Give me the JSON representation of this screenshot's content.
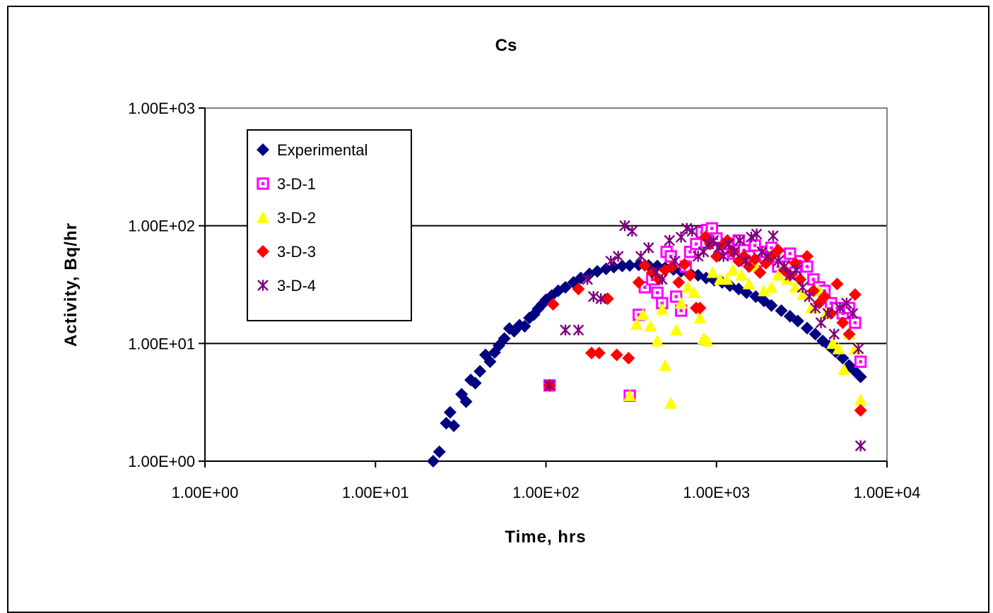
{
  "chart_data": {
    "type": "scatter",
    "title": "Cs",
    "xlabel": "Time, hrs",
    "ylabel": "Activity, Bq/hr",
    "xscale": "log",
    "yscale": "log",
    "xlim": [
      1,
      10000
    ],
    "ylim": [
      1,
      1000
    ],
    "xticks": [
      "1.00E+00",
      "1.00E+01",
      "1.00E+02",
      "1.00E+03",
      "1.00E+04"
    ],
    "yticks": [
      "1.00E+00",
      "1.00E+01",
      "1.00E+02",
      "1.00E+03"
    ],
    "grid": "horizontal major",
    "legend_position": "top-left",
    "series": [
      {
        "name": "Experimental",
        "color": "#000080",
        "marker": "diamond",
        "points": [
          [
            21.8,
            1.0
          ],
          [
            23.7,
            1.2
          ],
          [
            26.0,
            2.1
          ],
          [
            27.4,
            2.6
          ],
          [
            28.8,
            2.0
          ],
          [
            32.0,
            3.7
          ],
          [
            34.0,
            3.2
          ],
          [
            36.2,
            4.9
          ],
          [
            38.5,
            4.6
          ],
          [
            41.0,
            5.8
          ],
          [
            44.2,
            8.0
          ],
          [
            47.0,
            7.0
          ],
          [
            50.0,
            8.4
          ],
          [
            53.0,
            9.6
          ],
          [
            57.0,
            11.0
          ],
          [
            61.0,
            13.4
          ],
          [
            65.0,
            12.7
          ],
          [
            70.0,
            14.3
          ],
          [
            75.0,
            14.0
          ],
          [
            80.0,
            16.5
          ],
          [
            85.0,
            17.6
          ],
          [
            90.0,
            19.7
          ],
          [
            95.0,
            21.5
          ],
          [
            100.0,
            23.5
          ],
          [
            108.0,
            25.5
          ],
          [
            118.0,
            28.0
          ],
          [
            130.0,
            30.0
          ],
          [
            145.0,
            33.0
          ],
          [
            160.0,
            36.0
          ],
          [
            180.0,
            39.0
          ],
          [
            200.0,
            41.0
          ],
          [
            225.0,
            43.0
          ],
          [
            250.0,
            44.5
          ],
          [
            280.0,
            45.5
          ],
          [
            310.0,
            46.0
          ],
          [
            350.0,
            46.5
          ],
          [
            400.0,
            46.0
          ],
          [
            450.0,
            45.5
          ],
          [
            500.0,
            44.0
          ],
          [
            560.0,
            42.5
          ],
          [
            620.0,
            41.0
          ],
          [
            700.0,
            39.5
          ],
          [
            780.0,
            38.0
          ],
          [
            870.0,
            36.0
          ],
          [
            970.0,
            34.5
          ],
          [
            1080.0,
            33.0
          ],
          [
            1200.0,
            31.0
          ],
          [
            1350.0,
            29.0
          ],
          [
            1500.0,
            27.0
          ],
          [
            1700.0,
            25.0
          ],
          [
            1900.0,
            23.0
          ],
          [
            2100.0,
            21.0
          ],
          [
            2400.0,
            19.0
          ],
          [
            2700.0,
            17.0
          ],
          [
            3000.0,
            15.5
          ],
          [
            3400.0,
            13.5
          ],
          [
            3800.0,
            12.0
          ],
          [
            4200.0,
            10.5
          ],
          [
            4600.0,
            9.5
          ],
          [
            5000.0,
            8.5
          ],
          [
            5500.0,
            7.5
          ],
          [
            6000.0,
            6.5
          ],
          [
            6500.0,
            5.8
          ],
          [
            7000.0,
            5.2
          ]
        ]
      },
      {
        "name": "3-D-1",
        "color": "#ff00ff",
        "marker": "square",
        "points": [
          [
            105.0,
            4.4
          ],
          [
            310.0,
            3.6
          ],
          [
            350.0,
            17.5
          ],
          [
            380.0,
            30.0
          ],
          [
            420.0,
            35.0
          ],
          [
            450.0,
            27.0
          ],
          [
            480.0,
            22.0
          ],
          [
            510.0,
            60.0
          ],
          [
            540.0,
            55.0
          ],
          [
            580.0,
            25.0
          ],
          [
            620.0,
            19.0
          ],
          [
            660.0,
            45.0
          ],
          [
            700.0,
            60.0
          ],
          [
            760.0,
            70.0
          ],
          [
            820.0,
            88.0
          ],
          [
            880.0,
            92.0
          ],
          [
            940.0,
            95.0
          ],
          [
            1000.0,
            78.0
          ],
          [
            1080.0,
            65.0
          ],
          [
            1160.0,
            70.0
          ],
          [
            1250.0,
            58.0
          ],
          [
            1350.0,
            75.0
          ],
          [
            1450.0,
            62.0
          ],
          [
            1550.0,
            55.0
          ],
          [
            1680.0,
            68.0
          ],
          [
            1800.0,
            50.0
          ],
          [
            1950.0,
            60.0
          ],
          [
            2100.0,
            65.0
          ],
          [
            2300.0,
            45.0
          ],
          [
            2500.0,
            55.0
          ],
          [
            2700.0,
            58.0
          ],
          [
            2900.0,
            40.0
          ],
          [
            3100.0,
            50.0
          ],
          [
            3400.0,
            45.0
          ],
          [
            3700.0,
            35.0
          ],
          [
            4000.0,
            30.0
          ],
          [
            4300.0,
            28.0
          ],
          [
            4700.0,
            22.0
          ],
          [
            5100.0,
            20.0
          ],
          [
            5500.0,
            18.0
          ],
          [
            6000.0,
            20.0
          ],
          [
            6500.0,
            15.0
          ],
          [
            7000.0,
            7.0
          ]
        ]
      },
      {
        "name": "3-D-2",
        "color": "#ffff00",
        "marker": "triangle",
        "points": [
          [
            310.0,
            3.6
          ],
          [
            340.0,
            14.5
          ],
          [
            370.0,
            17.5
          ],
          [
            410.0,
            14.0
          ],
          [
            450.0,
            10.5
          ],
          [
            480.0,
            19.5
          ],
          [
            500.0,
            6.5
          ],
          [
            540.0,
            3.1
          ],
          [
            580.0,
            13.0
          ],
          [
            620.0,
            22.0
          ],
          [
            680.0,
            30.0
          ],
          [
            740.0,
            27.0
          ],
          [
            800.0,
            16.5
          ],
          [
            840.0,
            11.0
          ],
          [
            880.0,
            10.5
          ],
          [
            950.0,
            40.0
          ],
          [
            1050.0,
            35.0
          ],
          [
            1150.0,
            35.0
          ],
          [
            1250.0,
            42.0
          ],
          [
            1400.0,
            38.0
          ],
          [
            1550.0,
            32.0
          ],
          [
            1700.0,
            45.0
          ],
          [
            1900.0,
            28.0
          ],
          [
            2100.0,
            30.0
          ],
          [
            2300.0,
            38.0
          ],
          [
            2600.0,
            35.0
          ],
          [
            2900.0,
            30.0
          ],
          [
            3200.0,
            26.0
          ],
          [
            3600.0,
            20.0
          ],
          [
            4000.0,
            28.0
          ],
          [
            4400.0,
            18.0
          ],
          [
            4800.0,
            10.0
          ],
          [
            5200.0,
            9.0
          ],
          [
            5600.0,
            6.0
          ],
          [
            6000.0,
            12.0
          ],
          [
            6500.0,
            9.0
          ],
          [
            7000.0,
            3.3
          ]
        ]
      },
      {
        "name": "3-D-3",
        "color": "#ff0000",
        "marker": "diamond",
        "points": [
          [
            105.0,
            4.4
          ],
          [
            110.0,
            21.5
          ],
          [
            155.0,
            29.0
          ],
          [
            185.0,
            8.3
          ],
          [
            205.0,
            8.3
          ],
          [
            230.0,
            24.0
          ],
          [
            260.0,
            8.0
          ],
          [
            305.0,
            7.5
          ],
          [
            350.0,
            33.0
          ],
          [
            380.0,
            46.0
          ],
          [
            420.0,
            40.0
          ],
          [
            460.0,
            35.0
          ],
          [
            500.0,
            42.0
          ],
          [
            550.0,
            45.0
          ],
          [
            600.0,
            33.0
          ],
          [
            650.0,
            47.0
          ],
          [
            700.0,
            38.0
          ],
          [
            760.0,
            20.0
          ],
          [
            800.0,
            20.0
          ],
          [
            860.0,
            80.0
          ],
          [
            920.0,
            70.0
          ],
          [
            1000.0,
            55.0
          ],
          [
            1080.0,
            68.0
          ],
          [
            1160.0,
            75.0
          ],
          [
            1250.0,
            60.0
          ],
          [
            1350.0,
            50.0
          ],
          [
            1450.0,
            55.0
          ],
          [
            1550.0,
            45.0
          ],
          [
            1680.0,
            52.0
          ],
          [
            1800.0,
            40.0
          ],
          [
            1950.0,
            48.0
          ],
          [
            2100.0,
            55.0
          ],
          [
            2300.0,
            62.0
          ],
          [
            2500.0,
            42.0
          ],
          [
            2700.0,
            38.0
          ],
          [
            2900.0,
            48.0
          ],
          [
            3100.0,
            35.0
          ],
          [
            3400.0,
            55.0
          ],
          [
            3700.0,
            28.0
          ],
          [
            4000.0,
            22.0
          ],
          [
            4300.0,
            25.0
          ],
          [
            4700.0,
            18.0
          ],
          [
            5100.0,
            32.0
          ],
          [
            5500.0,
            15.0
          ],
          [
            6000.0,
            12.0
          ],
          [
            6500.0,
            26.0
          ],
          [
            7000.0,
            2.7
          ]
        ]
      },
      {
        "name": "3-D-4",
        "color": "#800080",
        "marker": "asterisk",
        "points": [
          [
            105.0,
            4.4
          ],
          [
            130.0,
            13.0
          ],
          [
            155.0,
            13.0
          ],
          [
            175.0,
            35.0
          ],
          [
            190.0,
            25.0
          ],
          [
            210.0,
            24.0
          ],
          [
            240.0,
            50.0
          ],
          [
            265.0,
            55.0
          ],
          [
            290.0,
            100.0
          ],
          [
            320.0,
            90.0
          ],
          [
            360.0,
            55.0
          ],
          [
            400.0,
            65.0
          ],
          [
            440.0,
            40.0
          ],
          [
            480.0,
            35.0
          ],
          [
            530.0,
            75.0
          ],
          [
            570.0,
            50.0
          ],
          [
            620.0,
            80.0
          ],
          [
            670.0,
            95.0
          ],
          [
            720.0,
            90.0
          ],
          [
            780.0,
            55.0
          ],
          [
            840.0,
            60.0
          ],
          [
            900.0,
            70.0
          ],
          [
            960.0,
            75.0
          ],
          [
            1030.0,
            65.0
          ],
          [
            1100.0,
            55.0
          ],
          [
            1180.0,
            70.0
          ],
          [
            1270.0,
            60.0
          ],
          [
            1370.0,
            75.0
          ],
          [
            1480.0,
            50.0
          ],
          [
            1600.0,
            80.0
          ],
          [
            1720.0,
            85.0
          ],
          [
            1850.0,
            60.0
          ],
          [
            2000.0,
            55.0
          ],
          [
            2150.0,
            82.0
          ],
          [
            2300.0,
            50.0
          ],
          [
            2500.0,
            45.0
          ],
          [
            2700.0,
            38.0
          ],
          [
            2950.0,
            42.0
          ],
          [
            3200.0,
            30.0
          ],
          [
            3500.0,
            25.0
          ],
          [
            3800.0,
            20.0
          ],
          [
            4100.0,
            15.0
          ],
          [
            4500.0,
            18.0
          ],
          [
            4900.0,
            12.0
          ],
          [
            5300.0,
            20.0
          ],
          [
            5800.0,
            22.0
          ],
          [
            6300.0,
            18.0
          ],
          [
            6800.0,
            9.0
          ],
          [
            7000.0,
            1.35
          ]
        ]
      }
    ]
  }
}
